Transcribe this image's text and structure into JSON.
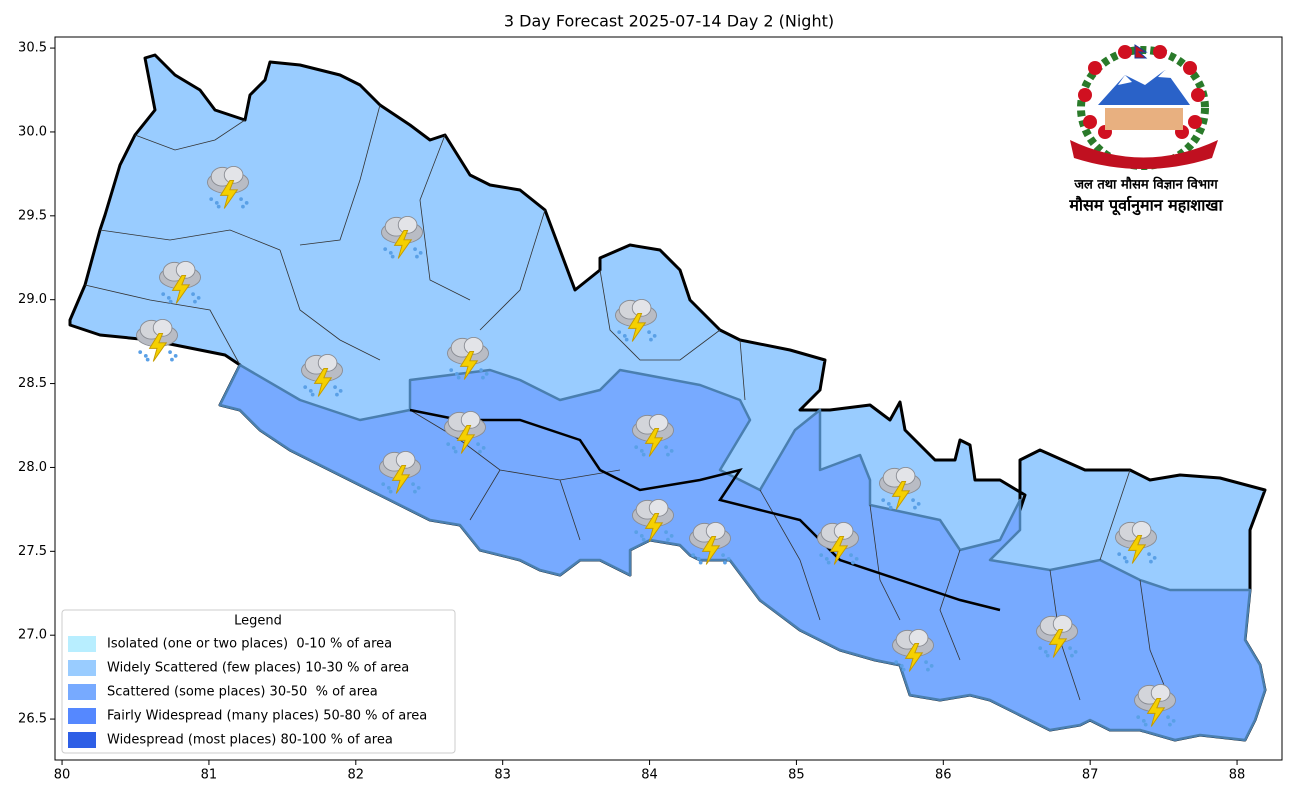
{
  "chart_data": {
    "type": "map",
    "title": "3 Day Forecast 2025-07-14 Day 2 (Night)",
    "xlim": [
      79.952,
      88.306
    ],
    "ylim": [
      26.256,
      30.566
    ],
    "xticks": [
      80,
      81,
      82,
      83,
      84,
      85,
      86,
      87,
      88
    ],
    "yticks": [
      26.5,
      {
        "value": 27,
        "label": "27.0"
      },
      27.5,
      {
        "value": 28,
        "label": "28.0"
      },
      28.5,
      {
        "value": 29,
        "label": "29.0"
      },
      29.5,
      {
        "value": 30,
        "label": "30.0"
      },
      30.5
    ],
    "legend": {
      "title": "Legend",
      "corner": "lower left",
      "items": [
        {
          "label": "Isolated (one or two places)  0-10 % of area",
          "color": "#b8eeff"
        },
        {
          "label": "Widely Scattered (few places) 10-30 % of area",
          "color": "#99ccff"
        },
        {
          "label": "Scattered (some places) 30-50  % of area",
          "color": "#77aaff"
        },
        {
          "label": "Fairly Widespread (many places) 50-80 % of area",
          "color": "#5588ff"
        },
        {
          "label": "Widespread (most places) 80-100 % of area",
          "color": "#2e5fe6"
        }
      ]
    },
    "logo": {
      "line1": "जल तथा मौसम विज्ञान विभाग",
      "line2": "मौसम पूर्वानुमान महाशाखा"
    }
  }
}
